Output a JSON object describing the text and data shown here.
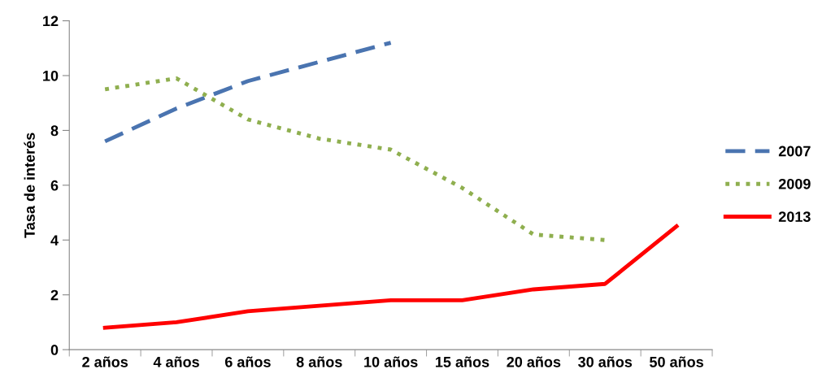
{
  "chart_data": {
    "type": "line",
    "ylabel": "Tasa de interés",
    "categories": [
      "2 años",
      "4 años",
      "6 años",
      "8 años",
      "10 años",
      "15 años",
      "20 años",
      "30 años",
      "50 años"
    ],
    "series": [
      {
        "name": "2007",
        "color": "#4a74b0",
        "line_style": "dashed",
        "values": [
          7.6,
          8.8,
          9.8,
          10.5,
          11.2,
          null,
          null,
          null,
          null
        ]
      },
      {
        "name": "2009",
        "color": "#8faf4f",
        "line_style": "dotted",
        "values": [
          9.5,
          9.9,
          8.4,
          7.7,
          7.3,
          5.9,
          4.2,
          4.0,
          null
        ]
      },
      {
        "name": "2013",
        "color": "#ff0000",
        "line_style": "solid",
        "values": [
          0.8,
          1.0,
          1.4,
          1.6,
          1.8,
          1.8,
          2.2,
          2.4,
          4.5
        ]
      }
    ],
    "ylim": [
      0,
      12
    ],
    "yticks": [
      0,
      2,
      4,
      6,
      8,
      10,
      12
    ],
    "grid": false,
    "legend": "right",
    "marker": "none"
  }
}
